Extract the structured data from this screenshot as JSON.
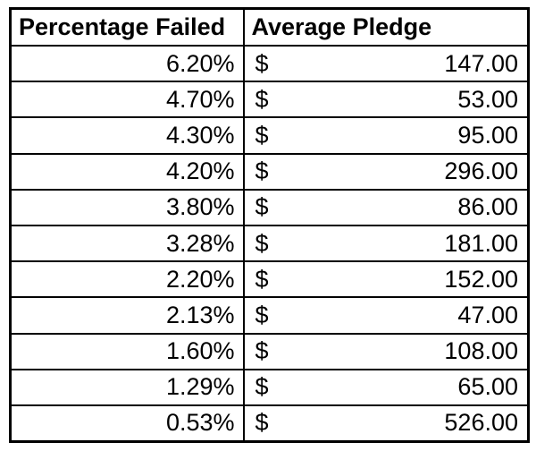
{
  "chart_data": {
    "type": "table",
    "columns": [
      "Percentage Failed",
      "Average Pledge"
    ],
    "currency_symbol": "$",
    "rows": [
      {
        "percentage_failed": "6.20%",
        "average_pledge": "147.00"
      },
      {
        "percentage_failed": "4.70%",
        "average_pledge": "53.00"
      },
      {
        "percentage_failed": "4.30%",
        "average_pledge": "95.00"
      },
      {
        "percentage_failed": "4.20%",
        "average_pledge": "296.00"
      },
      {
        "percentage_failed": "3.80%",
        "average_pledge": "86.00"
      },
      {
        "percentage_failed": "3.28%",
        "average_pledge": "181.00"
      },
      {
        "percentage_failed": "2.20%",
        "average_pledge": "152.00"
      },
      {
        "percentage_failed": "2.13%",
        "average_pledge": "47.00"
      },
      {
        "percentage_failed": "1.60%",
        "average_pledge": "108.00"
      },
      {
        "percentage_failed": "1.29%",
        "average_pledge": "65.00"
      },
      {
        "percentage_failed": "0.53%",
        "average_pledge": "526.00"
      }
    ],
    "percentage_values": [
      6.2,
      4.7,
      4.3,
      4.2,
      3.8,
      3.28,
      2.2,
      2.13,
      1.6,
      1.29,
      0.53
    ],
    "pledge_values": [
      147.0,
      53.0,
      95.0,
      296.0,
      86.0,
      181.0,
      152.0,
      47.0,
      108.0,
      65.0,
      526.0
    ],
    "colors": {
      "border": "#000000",
      "text": "#000000",
      "background": "#ffffff"
    }
  }
}
